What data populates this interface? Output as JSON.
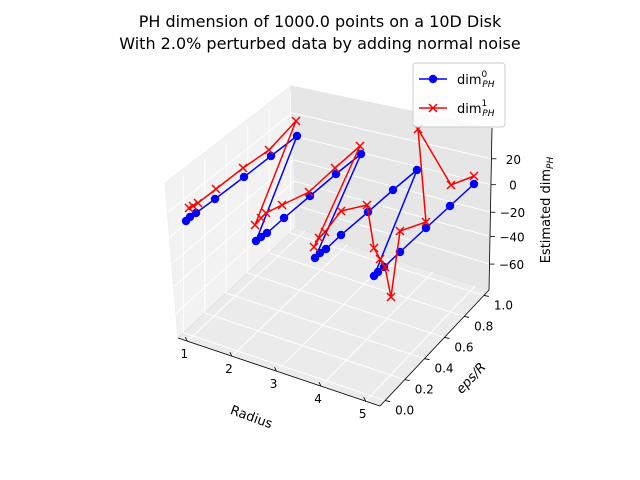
{
  "chart_data": {
    "type": "line",
    "projection": "3d",
    "title_line1": "PH dimension of 1000.0 points on a 10D Disk",
    "title_line2": "With 2.0% perturbed data by adding normal noise",
    "xlabel": "Radius",
    "ylabel": "eps/R",
    "zlabel_prefix": "Estimated dim",
    "zlabel_sub": "PH",
    "xticks": [
      "1",
      "2",
      "3",
      "4",
      "5"
    ],
    "yticks": [
      "0.0",
      "0.2",
      "0.4",
      "0.6",
      "0.8",
      "1.0"
    ],
    "zticks": [
      "20",
      "0",
      "−20",
      "−40",
      "−60"
    ],
    "legend": [
      {
        "main": "dim",
        "sup": "0",
        "sub": "PH",
        "color": "#0000ff",
        "marker": "circle"
      },
      {
        "main": "dim",
        "sup": "1",
        "sub": "PH",
        "color": "#ff0000",
        "marker": "x"
      }
    ],
    "legend_position": "upper right",
    "grid": true,
    "colors": {
      "series0": "#0000ff",
      "series1": "#ff0000"
    }
  }
}
